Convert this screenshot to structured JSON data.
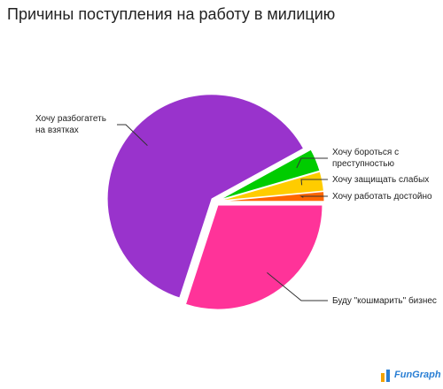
{
  "chart_data": {
    "type": "pie",
    "title": "Причины поступления на работу в милицию",
    "categories": [
      "Хочу разбогатеть на взятках",
      "Хочу бороться с преступностью",
      "Хочу защищать слабых",
      "Хочу работать достойно",
      "Буду \"кошмарить\" бизнес"
    ],
    "values": [
      62,
      3.5,
      3,
      1.5,
      30
    ],
    "colors": [
      "#9933cc",
      "#00cc00",
      "#ffcc00",
      "#ff6600",
      "#ff3399"
    ]
  },
  "watermark": "FunGraph"
}
